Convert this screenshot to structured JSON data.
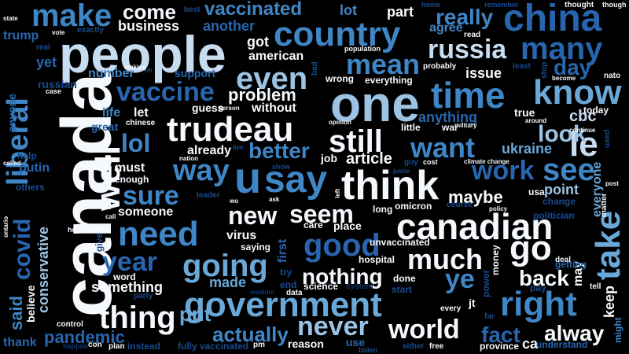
{
  "words": [
    {
      "text": "canada",
      "c": 1
    },
    {
      "text": "people",
      "c": 2
    },
    {
      "text": "one",
      "c": 3
    },
    {
      "text": "government",
      "c": 4
    },
    {
      "text": "canadian",
      "c": 1
    },
    {
      "text": "think",
      "c": 1
    },
    {
      "text": "time",
      "c": 5
    },
    {
      "text": "china",
      "c": 6
    },
    {
      "text": "country",
      "c": 5
    },
    {
      "text": "trudeau",
      "c": 1
    },
    {
      "text": "know",
      "c": 4
    },
    {
      "text": "need",
      "c": 5
    },
    {
      "text": "right",
      "c": 5
    },
    {
      "text": "make",
      "c": 5
    },
    {
      "text": "say",
      "c": 5
    },
    {
      "text": "u",
      "c": 5
    },
    {
      "text": "well",
      "c": 1
    },
    {
      "text": "vaccine",
      "c": 6
    },
    {
      "text": "good",
      "c": 6
    },
    {
      "text": "even",
      "c": 3
    },
    {
      "text": "liberal",
      "c": 5
    },
    {
      "text": "many",
      "c": 6
    },
    {
      "text": "take",
      "c": 4
    },
    {
      "text": "seem",
      "c": 1
    },
    {
      "text": "going",
      "c": 4
    },
    {
      "text": "thing",
      "c": 1
    },
    {
      "text": "world",
      "c": 1
    },
    {
      "text": "never",
      "c": 3
    },
    {
      "text": "mean",
      "c": 5
    },
    {
      "text": "want",
      "c": 5
    },
    {
      "text": "still",
      "c": 1
    },
    {
      "text": "russia",
      "c": 2
    },
    {
      "text": "le",
      "c": 2
    },
    {
      "text": "see",
      "c": 5
    },
    {
      "text": "way",
      "c": 5
    },
    {
      "text": "year",
      "c": 6
    },
    {
      "text": "go",
      "c": 1
    },
    {
      "text": "much",
      "c": 1
    },
    {
      "text": "new",
      "c": 1
    },
    {
      "text": "covid",
      "c": 6
    },
    {
      "text": "work",
      "c": 6
    },
    {
      "text": "sure",
      "c": 5
    },
    {
      "text": "ye",
      "c": 5
    },
    {
      "text": "lol",
      "c": 5
    },
    {
      "text": "really",
      "c": 5
    },
    {
      "text": "come",
      "c": 1
    },
    {
      "text": "vaccinated",
      "c": 5
    },
    {
      "text": "fact",
      "c": 6
    },
    {
      "text": "alway",
      "c": 1
    },
    {
      "text": "look",
      "c": 3
    },
    {
      "text": "day",
      "c": 6
    },
    {
      "text": "back",
      "c": 1
    },
    {
      "text": "better",
      "c": 5
    },
    {
      "text": "nothing",
      "c": 1
    },
    {
      "text": "actually",
      "c": 5
    },
    {
      "text": "put",
      "c": 4
    },
    {
      "text": "problem",
      "c": 1
    },
    {
      "text": "pandemic",
      "c": 6
    },
    {
      "text": "said",
      "c": 5
    },
    {
      "text": "conservative",
      "c": 3
    },
    {
      "text": "business",
      "c": 1
    },
    {
      "text": "something",
      "c": 1
    },
    {
      "text": "maybe",
      "c": 1
    },
    {
      "text": "made",
      "c": 4
    },
    {
      "text": "article",
      "c": 1
    },
    {
      "text": "issue",
      "c": 1
    },
    {
      "text": "another",
      "c": 6
    },
    {
      "text": "got",
      "c": 1
    },
    {
      "text": "american",
      "c": 1
    },
    {
      "text": "trump",
      "c": 6
    },
    {
      "text": "yet",
      "c": 6
    },
    {
      "text": "anyone",
      "c": 6
    },
    {
      "text": "keep",
      "c": 1
    },
    {
      "text": "cbc",
      "c": 2
    },
    {
      "text": "ukraine",
      "c": 4
    },
    {
      "text": "point",
      "c": 3
    },
    {
      "text": "everyone",
      "c": 4
    },
    {
      "text": "agree",
      "c": 5
    },
    {
      "text": "lot",
      "c": 5
    },
    {
      "text": "part",
      "c": 1
    },
    {
      "text": "someone",
      "c": 1
    },
    {
      "text": "let",
      "c": 1
    },
    {
      "text": "must",
      "c": 1
    },
    {
      "text": "already",
      "c": 1
    },
    {
      "text": "virus",
      "c": 1
    },
    {
      "text": "care",
      "c": 1
    },
    {
      "text": "place",
      "c": 1
    },
    {
      "text": "anything",
      "c": 6
    },
    {
      "text": "without",
      "c": 1
    },
    {
      "text": "number",
      "c": 5
    },
    {
      "text": "support",
      "c": 6
    },
    {
      "text": "life",
      "c": 5
    },
    {
      "text": "great",
      "c": 6
    },
    {
      "text": "enough",
      "c": 1
    },
    {
      "text": "guess",
      "c": 1
    },
    {
      "text": "first",
      "c": 6
    },
    {
      "text": "reason",
      "c": 1
    },
    {
      "text": "thank",
      "c": 6
    },
    {
      "text": "ca",
      "c": 1
    },
    {
      "text": "may",
      "c": 1
    },
    {
      "text": "might",
      "c": 5
    },
    {
      "text": "russian",
      "c": 7
    },
    {
      "text": "putin",
      "c": 6
    },
    {
      "text": "help",
      "c": 7
    },
    {
      "text": "others",
      "c": 7
    },
    {
      "text": "believe",
      "c": 1
    },
    {
      "text": "saying",
      "c": 1
    },
    {
      "text": "done",
      "c": 1
    },
    {
      "text": "science",
      "c": 1
    },
    {
      "text": "money",
      "c": 1
    },
    {
      "text": "understand",
      "c": 6
    },
    {
      "text": "jt",
      "c": 1
    },
    {
      "text": "getting",
      "c": 6
    },
    {
      "text": "use",
      "c": 6
    },
    {
      "text": "little",
      "c": 1
    },
    {
      "text": "war",
      "c": 1
    },
    {
      "text": "true",
      "c": 1
    },
    {
      "text": "today",
      "c": 1
    },
    {
      "text": "wrong",
      "c": 1
    },
    {
      "text": "everything",
      "c": 1
    },
    {
      "text": "job",
      "c": 1
    },
    {
      "text": "omicron",
      "c": 1
    },
    {
      "text": "long",
      "c": 1
    },
    {
      "text": "unvaccinated",
      "c": 1
    },
    {
      "text": "hospital",
      "c": 1
    },
    {
      "text": "change",
      "c": 7
    },
    {
      "text": "usa",
      "c": 1
    },
    {
      "text": "politician",
      "c": 7
    },
    {
      "text": "chinese",
      "c": 1
    },
    {
      "text": "party",
      "c": 7
    },
    {
      "text": "word",
      "c": 1
    },
    {
      "text": "give",
      "c": 7
    },
    {
      "text": "control",
      "c": 1
    },
    {
      "text": "instead",
      "c": 7
    },
    {
      "text": "plan",
      "c": 1
    },
    {
      "text": "fully vaccinated",
      "c": 7
    },
    {
      "text": "pm",
      "c": 1
    },
    {
      "text": "free",
      "c": 1
    },
    {
      "text": "province",
      "c": 1
    },
    {
      "text": "either",
      "c": 7
    },
    {
      "text": "biden",
      "c": 7
    },
    {
      "text": "every",
      "c": 1
    },
    {
      "text": "far",
      "c": 7
    },
    {
      "text": "power",
      "c": 7
    },
    {
      "text": "pay",
      "c": 7
    },
    {
      "text": "tell",
      "c": 1
    },
    {
      "text": "matter",
      "c": 1
    },
    {
      "text": "deal",
      "c": 1
    },
    {
      "text": "start",
      "c": 7
    },
    {
      "text": "system",
      "c": 8
    },
    {
      "text": "end",
      "c": 7
    },
    {
      "text": "data",
      "c": 1
    },
    {
      "text": "try",
      "c": 7
    },
    {
      "text": "medium",
      "c": 8
    },
    {
      "text": "probably",
      "c": 1
    },
    {
      "text": "least",
      "c": 7
    },
    {
      "text": "stop",
      "c": 7
    },
    {
      "text": "become",
      "c": 1
    },
    {
      "text": "nato",
      "c": 1
    },
    {
      "text": "read",
      "c": 1
    },
    {
      "text": "population",
      "c": 1
    },
    {
      "text": "home",
      "c": 7
    },
    {
      "text": "remember",
      "c": 7
    },
    {
      "text": "thought",
      "c": 1
    },
    {
      "text": "though",
      "c": 1
    },
    {
      "text": "best",
      "c": 7
    },
    {
      "text": "state",
      "c": 1
    },
    {
      "text": "vote",
      "c": 1
    },
    {
      "text": "exactly",
      "c": 7
    },
    {
      "text": "real",
      "c": 7
    },
    {
      "text": "case",
      "c": 1
    },
    {
      "text": "making",
      "c": 1
    },
    {
      "text": "oh",
      "c": 7
    },
    {
      "text": "bad",
      "c": 7
    },
    {
      "text": "person",
      "c": 1
    },
    {
      "text": "opinion",
      "c": 1
    },
    {
      "text": "military",
      "c": 1
    },
    {
      "text": "around",
      "c": 1
    },
    {
      "text": "continue",
      "c": 1
    },
    {
      "text": "used",
      "c": 7
    },
    {
      "text": "post",
      "c": 1
    },
    {
      "text": "climate change",
      "c": 1
    },
    {
      "text": "nation",
      "c": 1
    },
    {
      "text": "live",
      "c": 7
    },
    {
      "text": "show",
      "c": 7
    },
    {
      "text": "cost",
      "c": 1
    },
    {
      "text": "guy",
      "c": 7
    },
    {
      "text": "justin",
      "c": 7
    },
    {
      "text": "left",
      "c": 1
    },
    {
      "text": "ask",
      "c": 1
    },
    {
      "text": "wo",
      "c": 1
    },
    {
      "text": "leader",
      "c": 7
    },
    {
      "text": "call",
      "c": 1
    },
    {
      "text": "policy",
      "c": 1
    },
    {
      "text": "course",
      "c": 7
    },
    {
      "text": "called",
      "c": 1
    },
    {
      "text": "ontario",
      "c": 1
    },
    {
      "text": "hope",
      "c": 1
    },
    {
      "text": "happen",
      "c": 8
    },
    {
      "text": "con",
      "c": 1
    }
  ]
}
